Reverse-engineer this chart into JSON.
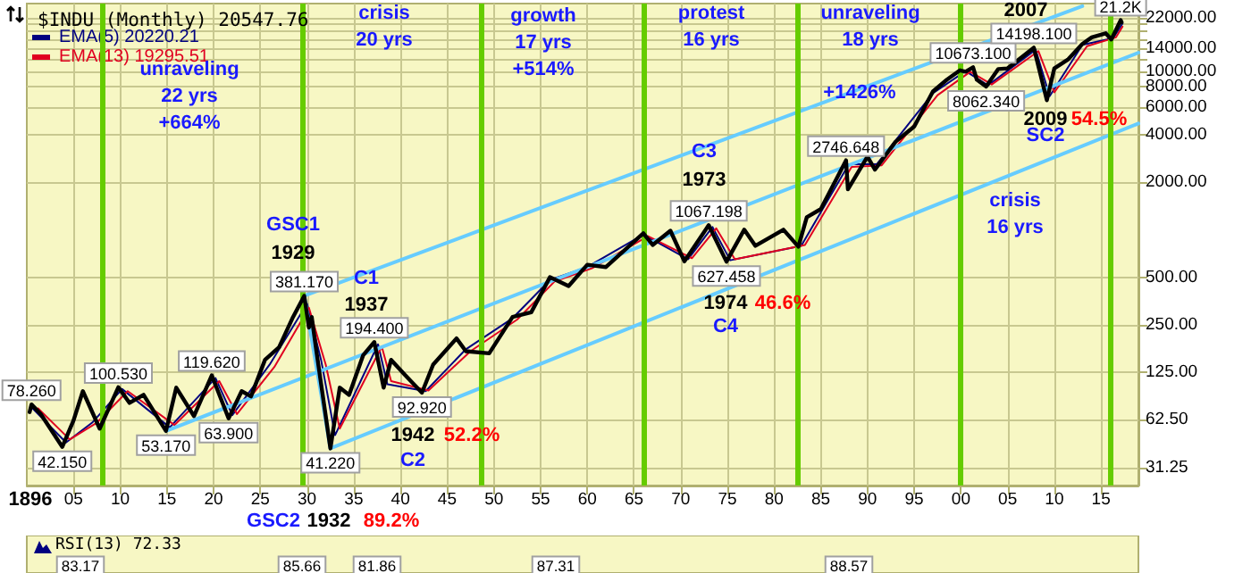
{
  "chart_data": [
    {
      "type": "line",
      "title": "$INDU (Monthly) 20547.76",
      "log": "y",
      "grid": true,
      "legend": "top left",
      "xlim": [
        1900,
        2019
      ],
      "xticks": [
        {
          "value": 1905,
          "label": "05"
        },
        {
          "value": 1910,
          "label": "10"
        },
        {
          "value": 1915,
          "label": "15"
        },
        {
          "value": 1920,
          "label": "20"
        },
        {
          "value": 1925,
          "label": "25"
        },
        {
          "value": 1930,
          "label": "30"
        },
        {
          "value": 1935,
          "label": "35"
        },
        {
          "value": 1940,
          "label": "40"
        },
        {
          "value": 1945,
          "label": "45"
        },
        {
          "value": 1950,
          "label": "50"
        },
        {
          "value": 1955,
          "label": "55"
        },
        {
          "value": 1960,
          "label": "60"
        },
        {
          "value": 1965,
          "label": "65"
        },
        {
          "value": 1970,
          "label": "70"
        },
        {
          "value": 1975,
          "label": "75"
        },
        {
          "value": 1980,
          "label": "80"
        },
        {
          "value": 1985,
          "label": "85"
        },
        {
          "value": 1990,
          "label": "90"
        },
        {
          "value": 1995,
          "label": "95"
        },
        {
          "value": 2000,
          "label": "00"
        },
        {
          "value": 2005,
          "label": "05"
        },
        {
          "value": 2010,
          "label": "10"
        },
        {
          "value": 2015,
          "label": "15"
        }
      ],
      "ylim": [
        24,
        27000
      ],
      "yticks": [
        31.25,
        {
          "value": 62.5,
          "label": "62.50"
        },
        {
          "value": 125,
          "label": "125.00"
        },
        {
          "value": 250,
          "label": "250.00"
        },
        {
          "value": 500,
          "label": "500.00"
        },
        {
          "value": 2000,
          "label": "2000.00"
        },
        {
          "value": 4000,
          "label": "4000.00"
        },
        {
          "value": 6000,
          "label": "6000.00"
        },
        {
          "value": 8000,
          "label": "8000.00"
        },
        {
          "value": 10000,
          "label": "10000.00"
        },
        {
          "value": 12000,
          "label": null
        },
        {
          "value": 14000,
          "label": "14000.00"
        },
        {
          "value": 16000,
          "label": null
        },
        {
          "value": 18000,
          "label": null
        },
        {
          "value": 20000,
          "label": null
        },
        {
          "value": 22000,
          "label": "22000.00"
        }
      ],
      "ref_lines": [
        {
          "axis": "x",
          "value": 1908,
          "color": "#66cc00"
        },
        {
          "axis": "x",
          "value": 1929.6,
          "color": "#66cc00"
        },
        {
          "axis": "x",
          "value": 1948.6,
          "color": "#66cc00"
        },
        {
          "axis": "x",
          "value": 1966,
          "color": "#66cc00"
        },
        {
          "axis": "x",
          "value": 1982.6,
          "color": "#66cc00"
        },
        {
          "axis": "x",
          "value": 2000,
          "color": "#66cc00"
        },
        {
          "axis": "x",
          "value": 2016,
          "color": "#66cc00"
        }
      ],
      "series": [
        {
          "color": "#000000",
          "x": [
            1900.3,
            1900.5,
            1901.5,
            1903.8,
            1905,
            1906,
            1907.8,
            1909.8,
            1911,
            1912.5,
            1914.9,
            1916,
            1917.9,
            1919.8,
            1921.6,
            1923,
            1924,
            1925.5,
            1927,
            1928.5,
            1929.7,
            1930.2,
            1930.5,
            1931,
            1932.5,
            1933.5,
            1934.5,
            1936,
            1937.2,
            1938.2,
            1939,
            1940.5,
            1942.3,
            1943.5,
            1946,
            1947,
            1949.5,
            1952,
            1954,
            1956,
            1958,
            1960,
            1962,
            1966,
            1967,
            1968.9,
            1970.4,
            1973,
            1974.9,
            1976.8,
            1978,
            1981,
            1982.6,
            1983.5,
            1985,
            1987.7,
            1987.9,
            1990,
            1990.8,
            1993,
            1995,
            1997,
            1998.5,
            1999.9,
            2000.5,
            2001.3,
            2001.7,
            2002.7,
            2004,
            2005,
            2007.8,
            2009.2,
            2010,
            2011.5,
            2013,
            2014,
            2015.5,
            2016.1,
            2017.1,
            2017.2
          ],
          "values": [
            70,
            78.26,
            68,
            42.15,
            62,
            95,
            55,
            100.53,
            80,
            90,
            53.17,
            100,
            66,
            119.62,
            63.9,
            95,
            88,
            150,
            180,
            280,
            381.17,
            240,
            280,
            170,
            41.22,
            100,
            90,
            160,
            194.4,
            100,
            150,
            120,
            92.92,
            140,
            205,
            170,
            165,
            280,
            300,
            500,
            440,
            600,
            580,
            950,
            800,
            985,
            630,
            1067.198,
            627.458,
            1000,
            790,
            1000,
            780,
            1200,
            1350,
            2746.648,
            1800,
            2900,
            2400,
            3600,
            4500,
            7500,
            8900,
            10200,
            10000,
            10673.1,
            8900,
            8062.34,
            10400,
            10500,
            14198.1,
            6600,
            10500,
            12000,
            15000,
            16500,
            17500,
            16000,
            21200,
            20547.76
          ],
          "value_labels": [
            null,
            "78.260",
            null,
            "42.150",
            null,
            null,
            null,
            "100.530",
            null,
            null,
            "53.170",
            null,
            null,
            "119.620",
            "63.900",
            null,
            null,
            null,
            null,
            null,
            "381.170",
            null,
            null,
            null,
            "41.220",
            null,
            null,
            null,
            "194.400",
            null,
            null,
            null,
            "92.920",
            null,
            null,
            null,
            null,
            null,
            null,
            null,
            null,
            null,
            null,
            null,
            null,
            null,
            null,
            "1067.198",
            "627.458",
            null,
            null,
            null,
            null,
            null,
            null,
            "2746.648",
            null,
            null,
            null,
            null,
            null,
            null,
            null,
            null,
            null,
            "10673.100",
            null,
            "8062.340",
            null,
            null,
            "14198.100",
            null,
            null,
            null,
            null,
            null,
            null,
            null,
            "21.2K",
            null
          ]
        },
        {
          "name": "EMA(5) 20220.21",
          "color": "#000080",
          "x": [
            1900.5,
            1904.2,
            1907,
            1910.2,
            1915.3,
            1920.2,
            1922,
            1926,
            1930,
            1931.5,
            1933,
            1937.6,
            1938.6,
            1942.7,
            1947,
            1952,
            1956,
            1960,
            1966,
            1970.8,
            1973.4,
            1975.3,
            1982.9,
            1988,
            1991,
            1997,
            2000.5,
            2002.9,
            2008,
            2009.5,
            2013,
            2016.3,
            2017.3
          ],
          "values": [
            75,
            45,
            60,
            98,
            56,
            115,
            67,
            140,
            340,
            150,
            50,
            188,
            105,
            95,
            175,
            275,
            480,
            580,
            930,
            650,
            1040,
            640,
            790,
            2600,
            2600,
            7300,
            10100,
            8200,
            13800,
            7000,
            14800,
            16300,
            20220.21
          ]
        },
        {
          "name": "EMA(13) 19295.51",
          "color": "#e00020",
          "x": [
            1901.2,
            1904.6,
            1907.5,
            1910.8,
            1915.8,
            1920.6,
            1922.5,
            1926.5,
            1930.2,
            1932,
            1933.5,
            1938,
            1939,
            1943,
            1947.5,
            1952.5,
            1956.5,
            1960.5,
            1966.5,
            1971.2,
            1973.8,
            1975.8,
            1983.3,
            1988.3,
            1991.5,
            1997.5,
            2001,
            2003.3,
            2008.3,
            2010,
            2013.5,
            2016.6,
            2017.3
          ],
          "values": [
            74,
            47,
            60,
            95,
            58,
            110,
            68,
            135,
            320,
            140,
            55,
            182,
            110,
            96,
            170,
            270,
            470,
            570,
            910,
            660,
            1020,
            650,
            800,
            2500,
            2550,
            7100,
            10000,
            8300,
            13500,
            7400,
            14500,
            16500,
            19295.51
          ]
        },
        {
          "color": "#66ccff",
          "x": [
            2013,
            1929.7,
            1932.5,
            2019
          ],
          "values": [
            26000,
            381.17,
            41.22,
            4700
          ]
        },
        {
          "color": "#66ccff",
          "x": [
            1914.9,
            2019
          ],
          "values": [
            53.17,
            13200
          ]
        }
      ],
      "annotations": [
        "unraveling\n22 yrs\n+664%",
        "crisis\n20 yrs",
        "growth\n17 yrs\n+514%",
        "protest\n16 yrs",
        "unraveling\n18 yrs",
        "+1426%",
        "crisis\n16 yrs",
        "GSC1",
        "1929",
        "C1",
        "1937",
        "1942",
        "52.2%",
        "C2",
        "C3",
        "1973",
        "1974",
        "46.6%",
        "C4",
        "2007",
        "2009",
        "54.5%",
        "SC2",
        "GSC2",
        "1932",
        "89.2%",
        "1896"
      ]
    },
    {
      "type": "other",
      "title": "RSI(13) 72.33",
      "annotations": [
        "83.17",
        "85.66",
        "81.86",
        "87.31",
        "88.57"
      ]
    }
  ]
}
